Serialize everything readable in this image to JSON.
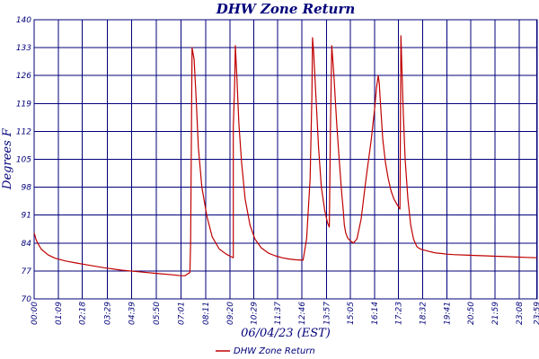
{
  "chart_data": {
    "type": "line",
    "title": "DHW Zone Return",
    "xlabel": "06/04/23 (EST)",
    "ylabel": "Degrees F",
    "ylim": [
      70,
      140
    ],
    "xlim": [
      0,
      1440
    ],
    "yticks": [
      "70",
      "77",
      "84",
      "91",
      "98",
      "105",
      "112",
      "119",
      "126",
      "133",
      "140"
    ],
    "xticks": [
      "00:00",
      "01:09",
      "02:18",
      "03:29",
      "04:39",
      "05:50",
      "07:01",
      "08:11",
      "09:20",
      "10:29",
      "11:37",
      "12:46",
      "13:57",
      "15:05",
      "16:14",
      "17:23",
      "18:32",
      "19:41",
      "20:50",
      "21:59",
      "23:08",
      "23:59"
    ],
    "xtick_minutes": [
      0,
      69,
      138,
      209,
      279,
      350,
      421,
      491,
      560,
      629,
      697,
      766,
      837,
      905,
      974,
      1043,
      1112,
      1181,
      1250,
      1319,
      1388,
      1439
    ],
    "grid": true,
    "legend_position": "bottom-center",
    "line_color": "#c00000",
    "series": [
      {
        "name": "DHW Zone Return",
        "color": "#c00000",
        "x": [
          0,
          2,
          5,
          10,
          20,
          40,
          60,
          90,
          120,
          160,
          200,
          250,
          300,
          350,
          400,
          420,
          432,
          440,
          446,
          448,
          452,
          458,
          464,
          470,
          480,
          495,
          510,
          530,
          550,
          566,
          570,
          570,
          574,
          576,
          580,
          586,
          594,
          604,
          618,
          632,
          650,
          670,
          690,
          710,
          730,
          750,
          770,
          780,
          790,
          795,
          797,
          800,
          806,
          814,
          822,
          832,
          840,
          845,
          848,
          852,
          858,
          866,
          874,
          880,
          885,
          888,
          892,
          898,
          906,
          914,
          924,
          936,
          950,
          965,
          975,
          980,
          985,
          988,
          992,
          998,
          1006,
          1014,
          1022,
          1030,
          1040,
          1047,
          1050,
          1052,
          1056,
          1062,
          1070,
          1078,
          1086,
          1092,
          1095,
          1097,
          1100,
          1106,
          1114,
          1122,
          1130,
          1140,
          1150,
          1165,
          1180,
          1200,
          1230,
          1260,
          1290,
          1320,
          1350,
          1380,
          1410,
          1439
        ],
        "values": [
          86.5,
          86,
          85,
          84,
          82.5,
          81,
          80.2,
          79.5,
          79,
          78.4,
          77.8,
          77.2,
          76.8,
          76.4,
          76,
          75.8,
          75.8,
          76.3,
          76.6,
          84,
          133,
          130,
          120,
          108,
          98,
          90.5,
          85.5,
          82.5,
          81.2,
          80.5,
          80.3,
          113,
          124,
          133.5,
          126,
          114,
          104,
          95,
          88.5,
          85,
          82.8,
          81.5,
          80.8,
          80.3,
          80,
          79.8,
          79.7,
          85,
          100,
          121,
          135.5,
          132,
          122,
          108,
          98,
          92,
          89,
          88,
          112,
          133.5,
          126,
          114,
          104,
          97,
          92,
          88.5,
          86.5,
          85.2,
          84.5,
          84,
          85,
          90,
          100,
          110,
          118,
          123,
          126,
          124,
          118,
          110,
          104,
          100,
          97,
          95,
          93.5,
          92.5,
          136,
          130,
          118,
          105,
          95,
          88.5,
          85,
          83.8,
          83.2,
          83,
          82.8,
          82.5,
          82.3,
          82.1,
          81.9,
          81.7,
          81.5,
          81.4,
          81.2,
          81.1,
          81,
          80.9,
          80.8,
          80.7,
          80.6,
          80.5,
          80.4,
          80.3
        ]
      }
    ]
  }
}
